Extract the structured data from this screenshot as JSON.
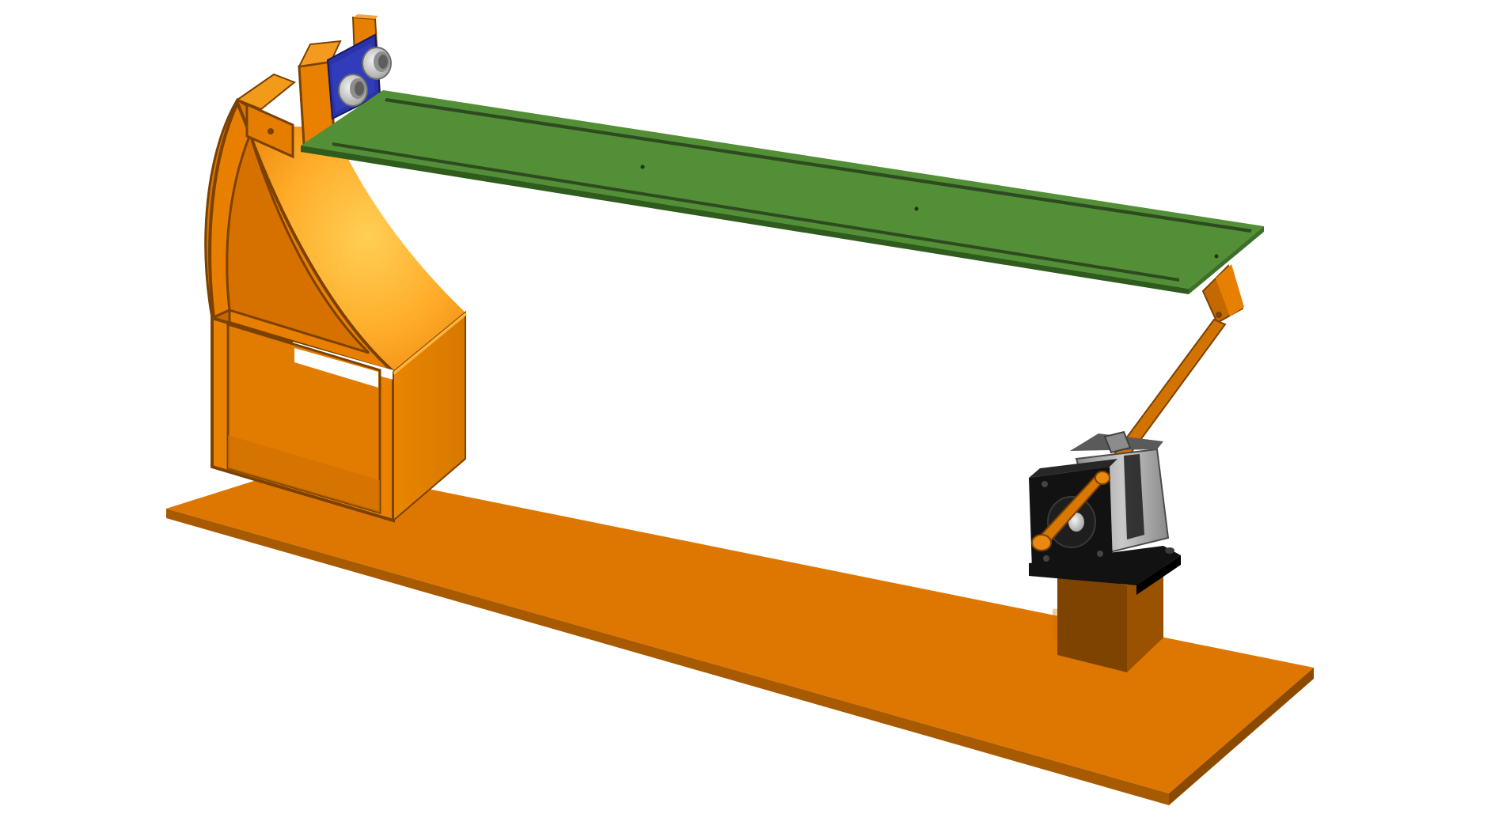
{
  "scene": {
    "colors": {
      "background": "#ffffff",
      "base_top": "#de7702",
      "base_edge": "#a85a00",
      "wood_dark": "#7a4100",
      "wood_mid": "#c46800",
      "wood_light": "#ffbe3c",
      "rail_green": "#528f36",
      "rail_green_dark": "#2f5b1d",
      "sensor_blue": "#2a33a8",
      "sensor_silver": "#d4d4d4",
      "motor_black": "#111111",
      "motor_grey": "#9a9a9a"
    },
    "icons": [
      "base-plate",
      "curved-stand",
      "sensor-mount",
      "ultrasonic-sensor",
      "green-rail",
      "linkage-arm",
      "stepper-motor",
      "motor-bracket",
      "motor-pillar"
    ]
  }
}
